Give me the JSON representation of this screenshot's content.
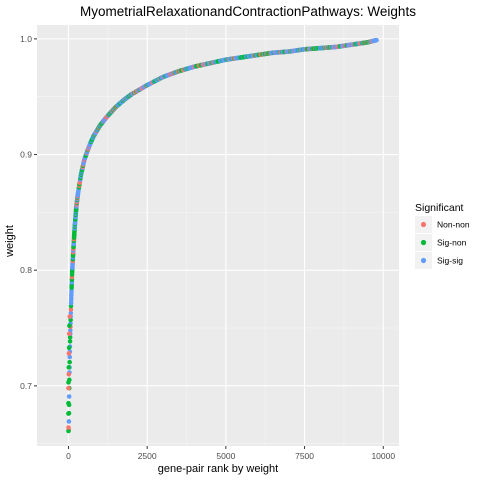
{
  "chart_data": {
    "type": "scatter",
    "title": "MyometrialRelaxationandContractionPathways: Weights",
    "xlabel": "gene-pair rank by weight",
    "ylabel": "weight",
    "xlim": [
      -1000,
      10500
    ],
    "ylim": [
      0.648,
      1.012
    ],
    "x_ticks": [
      0,
      2500,
      5000,
      7500,
      10000
    ],
    "x_tick_labels": [
      "0",
      "2500",
      "5000",
      "7500",
      "10000"
    ],
    "y_ticks": [
      0.7,
      0.8,
      0.9,
      1.0
    ],
    "y_tick_labels": [
      "0.7",
      "0.8",
      "0.9",
      "1.0"
    ],
    "grid": true,
    "legend_position": "right",
    "legend_title": "Significant",
    "series": [
      {
        "name": "Non-non",
        "color": "#F8766D"
      },
      {
        "name": "Sig-non",
        "color": "#00BA38"
      },
      {
        "name": "Sig-sig",
        "color": "#619CFF"
      }
    ],
    "curve": {
      "x": [
        10,
        30,
        50,
        80,
        120,
        160,
        200,
        250,
        300,
        400,
        500,
        600,
        700,
        800,
        1000,
        1200,
        1500,
        1800,
        2000,
        2500,
        3000,
        3500,
        4000,
        4500,
        5000,
        5500,
        6000,
        6500,
        7000,
        7500,
        8000,
        8500,
        9000,
        9500,
        9800
      ],
      "y": [
        0.662,
        0.71,
        0.74,
        0.77,
        0.8,
        0.82,
        0.838,
        0.855,
        0.866,
        0.883,
        0.895,
        0.903,
        0.91,
        0.916,
        0.925,
        0.932,
        0.941,
        0.948,
        0.952,
        0.96,
        0.967,
        0.972,
        0.976,
        0.979,
        0.982,
        0.984,
        0.986,
        0.988,
        0.989,
        0.991,
        0.992,
        0.993,
        0.995,
        0.997,
        0.999
      ]
    },
    "outliers": [
      {
        "x": 0,
        "y": 0.661,
        "series": "Sig-non"
      },
      {
        "x": 0,
        "y": 0.664,
        "series": "Non-non"
      },
      {
        "x": 0,
        "y": 0.676,
        "series": "Sig-non"
      },
      {
        "x": 0,
        "y": 0.685,
        "series": "Sig-non"
      },
      {
        "x": 0,
        "y": 0.698,
        "series": "Non-non"
      },
      {
        "x": 0,
        "y": 0.703,
        "series": "Sig-non"
      },
      {
        "x": 10,
        "y": 0.71,
        "series": "Non-non"
      },
      {
        "x": 10,
        "y": 0.716,
        "series": "Sig-non"
      },
      {
        "x": 15,
        "y": 0.728,
        "series": "Non-non"
      },
      {
        "x": 20,
        "y": 0.733,
        "series": "Sig-non"
      },
      {
        "x": 25,
        "y": 0.745,
        "series": "Non-non"
      },
      {
        "x": 30,
        "y": 0.752,
        "series": "Sig-non"
      },
      {
        "x": 40,
        "y": 0.76,
        "series": "Non-non"
      }
    ]
  }
}
